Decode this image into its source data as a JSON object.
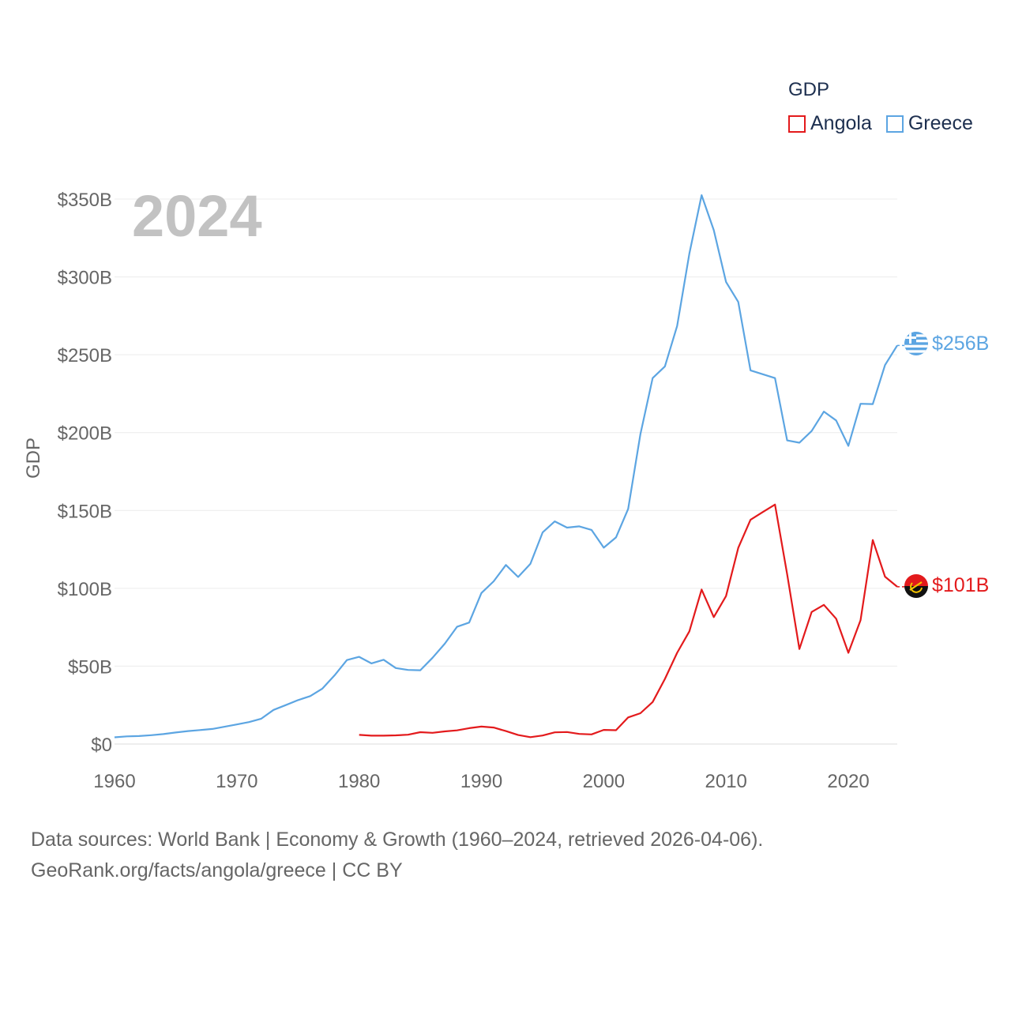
{
  "chart_data": {
    "type": "line",
    "year_label": "2024",
    "ylabel": "GDP",
    "ylim": [
      0,
      350
    ],
    "xlim": [
      1960,
      2024
    ],
    "y_ticks": [
      {
        "v": 0,
        "label": "$0"
      },
      {
        "v": 50,
        "label": "$50B"
      },
      {
        "v": 100,
        "label": "$100B"
      },
      {
        "v": 150,
        "label": "$150B"
      },
      {
        "v": 200,
        "label": "$200B"
      },
      {
        "v": 250,
        "label": "$250B"
      },
      {
        "v": 300,
        "label": "$300B"
      },
      {
        "v": 350,
        "label": "$350B"
      }
    ],
    "x_ticks": [
      {
        "v": 1960,
        "label": "1960"
      },
      {
        "v": 1970,
        "label": "1970"
      },
      {
        "v": 1980,
        "label": "1980"
      },
      {
        "v": 1990,
        "label": "1990"
      },
      {
        "v": 2000,
        "label": "2000"
      },
      {
        "v": 2010,
        "label": "2010"
      },
      {
        "v": 2020,
        "label": "2020"
      }
    ],
    "legend_title": "GDP",
    "series": [
      {
        "name": "Angola",
        "color": "#e31a1c",
        "end_label": "$101B",
        "flag": "angola-flag-icon",
        "x": [
          1980,
          1981,
          1982,
          1983,
          1984,
          1985,
          1986,
          1987,
          1988,
          1989,
          1990,
          1991,
          1992,
          1993,
          1994,
          1995,
          1996,
          1997,
          1998,
          1999,
          2000,
          2001,
          2002,
          2003,
          2004,
          2005,
          2006,
          2007,
          2008,
          2009,
          2010,
          2011,
          2012,
          2013,
          2014,
          2015,
          2016,
          2017,
          2018,
          2019,
          2020,
          2021,
          2022,
          2023,
          2024
        ],
        "values": [
          5.9,
          5.4,
          5.4,
          5.6,
          6.0,
          7.6,
          7.2,
          8.1,
          8.8,
          10.2,
          11.2,
          10.6,
          8.3,
          5.8,
          4.4,
          5.5,
          7.5,
          7.7,
          6.5,
          6.2,
          9.1,
          8.9,
          17.1,
          19.8,
          27.0,
          41.8,
          58.6,
          72.4,
          99.2,
          81.5,
          95.0,
          126.0,
          144.0,
          149.0,
          153.8,
          109.0,
          61.0,
          84.8,
          89.4,
          80.5,
          58.6,
          79.5,
          131.0,
          107.5,
          101.0
        ]
      },
      {
        "name": "Greece",
        "color": "#5ca5e2",
        "end_label": "$256B",
        "flag": "greece-flag-icon",
        "x": [
          1960,
          1961,
          1962,
          1963,
          1964,
          1965,
          1966,
          1967,
          1968,
          1969,
          1970,
          1971,
          1972,
          1973,
          1974,
          1975,
          1976,
          1977,
          1978,
          1979,
          1980,
          1981,
          1982,
          1983,
          1984,
          1985,
          1986,
          1987,
          1988,
          1989,
          1990,
          1991,
          1992,
          1993,
          1994,
          1995,
          1996,
          1997,
          1998,
          1999,
          2000,
          2001,
          2002,
          2003,
          2004,
          2005,
          2006,
          2007,
          2008,
          2009,
          2010,
          2011,
          2012,
          2013,
          2014,
          2015,
          2016,
          2017,
          2018,
          2019,
          2020,
          2021,
          2022,
          2023,
          2024
        ],
        "values": [
          4.3,
          4.9,
          5.1,
          5.7,
          6.4,
          7.4,
          8.3,
          9.0,
          9.7,
          11.1,
          12.6,
          14.1,
          16.3,
          21.9,
          25.0,
          28.2,
          30.8,
          35.6,
          44.2,
          53.9,
          56.0,
          51.8,
          54.1,
          48.8,
          47.6,
          47.4,
          55.4,
          64.4,
          75.3,
          78.0,
          97.0,
          104.5,
          115.0,
          107.3,
          115.7,
          135.9,
          143.0,
          139.0,
          139.8,
          137.5,
          126.1,
          132.7,
          151.0,
          199.0,
          235.0,
          242.5,
          268.5,
          315.0,
          352.5,
          330.0,
          296.8,
          283.9,
          240.0,
          237.5,
          235.0,
          195.0,
          193.5,
          201.0,
          213.5,
          207.8,
          191.5,
          218.5,
          218.3,
          243.4,
          256.0
        ]
      }
    ]
  },
  "source_line1": "Data sources: World Bank | Economy & Growth (1960–2024, retrieved 2026-04-06).",
  "source_line2": "GeoRank.org/facts/angola/greece | CC BY"
}
